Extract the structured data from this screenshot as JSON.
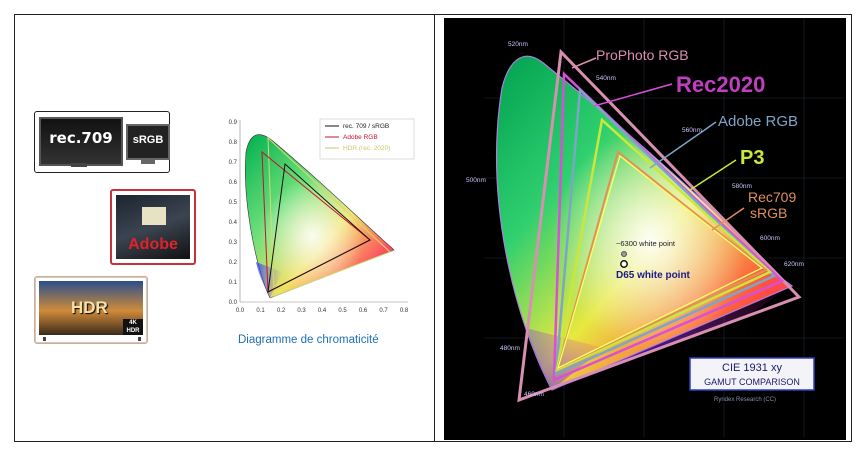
{
  "left_panel": {
    "devices": {
      "rec709_label": "rec.709",
      "srgb_label": "sRGB",
      "adobe_label": "Adobe",
      "hdr_label": "HDR",
      "hdr_badge": "4K HDR"
    },
    "chart_title": "Diagramme de chromaticité",
    "legend": [
      {
        "label": "rec. 709 / sRGB",
        "color": "#111111"
      },
      {
        "label": "Adobe RGB",
        "color": "#c8102e"
      },
      {
        "label": "HDR (rec. 2020)",
        "color": "#c8c86a"
      }
    ],
    "x_ticks": [
      "0.0",
      "0.1",
      "0.2",
      "0.3",
      "0.4",
      "0.5",
      "0.6",
      "0.7",
      "0.8"
    ],
    "y_ticks": [
      "0.0",
      "0.1",
      "0.2",
      "0.3",
      "0.4",
      "0.5",
      "0.6",
      "0.7",
      "0.8",
      "0.9"
    ]
  },
  "right_panel": {
    "gamut_labels": {
      "prophoto": "ProPhoto RGB",
      "rec2020": "Rec2020",
      "adobe": "Adobe RGB",
      "p3": "P3",
      "rec709": "Rec709",
      "srgb": "sRGB"
    },
    "wavelengths": [
      "520nm",
      "540nm",
      "560nm",
      "580nm",
      "500nm",
      "600nm",
      "620nm",
      "480nm",
      "460nm"
    ],
    "white_points": {
      "alt": "~6300 white point",
      "d65": "D65 white point"
    },
    "title_box": {
      "line1": "CIE 1931 xy",
      "line2": "GAMUT COMPARISON"
    },
    "credit": "Ryndex Research (CC)",
    "colors": {
      "prophoto": "#d98fb0",
      "rec2020": "#d84fd8",
      "adobe": "#7fa4c8",
      "p3": "#c8e83a",
      "rec709": "#e0905a"
    }
  }
}
